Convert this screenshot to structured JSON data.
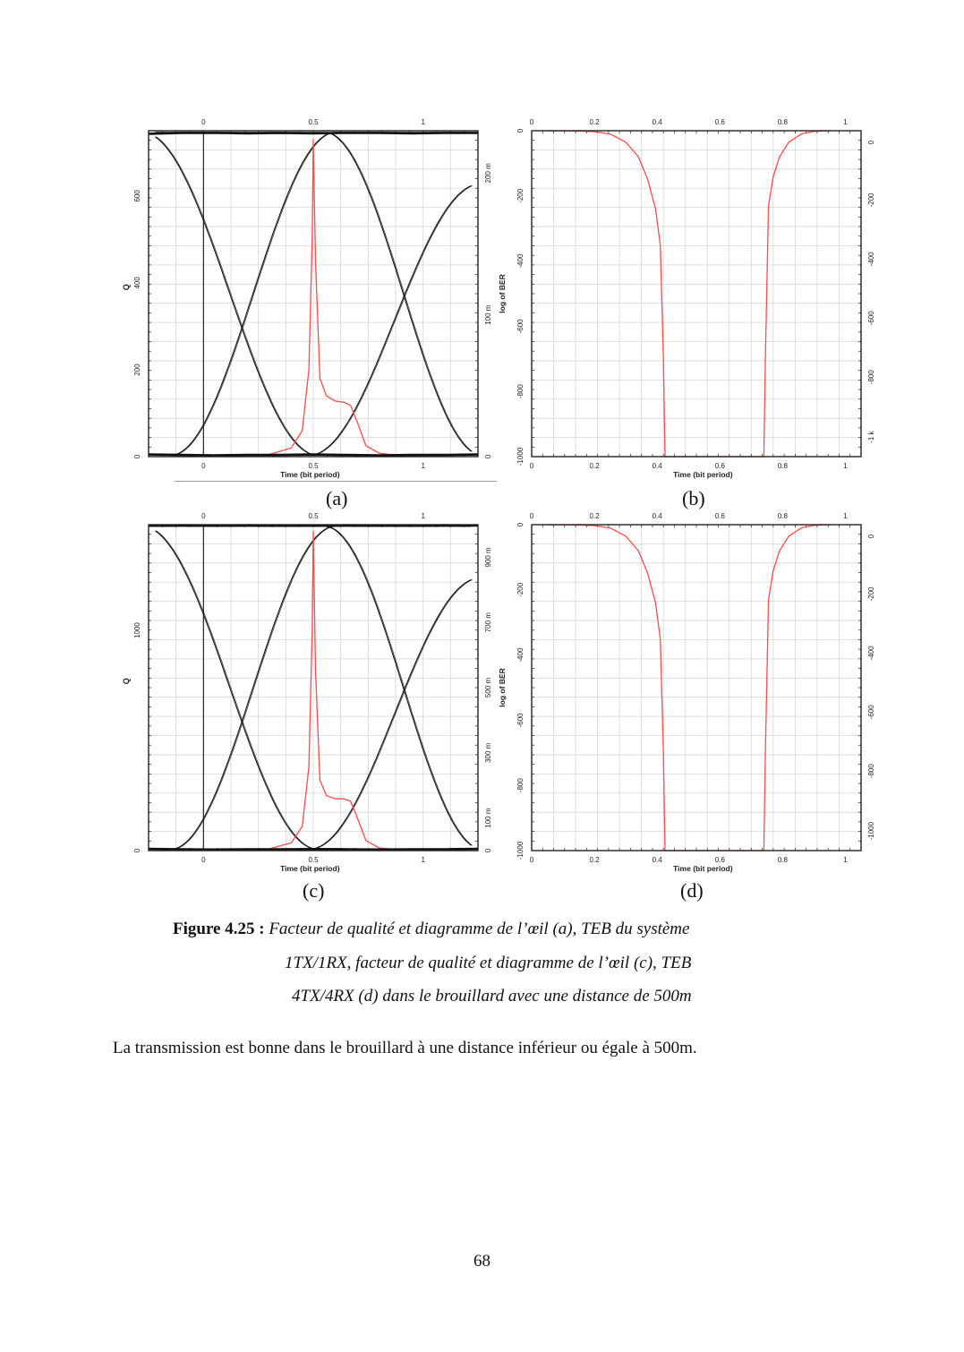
{
  "panels": {
    "a": {
      "label": "(a)",
      "x_axis_label": "Time (bit period)",
      "y_left_label": "Q",
      "bottom_ticks": [
        "0",
        "0.5",
        "1"
      ],
      "top_ticks": [
        "0",
        "0.5",
        "1"
      ],
      "left_ticks": [
        "0",
        "200",
        "400",
        "600"
      ],
      "right_ticks": [
        "0",
        "100 m",
        "200 m"
      ]
    },
    "b": {
      "label": "(b)",
      "x_axis_label": "Time (bit period)",
      "y_left_label": "log of BER",
      "bottom_ticks": [
        "0",
        "0.2",
        "0.4",
        "0.6",
        "0.8",
        "1"
      ],
      "top_ticks": [
        "0",
        "0.2",
        "0.4",
        "0.6",
        "0.8",
        "1"
      ],
      "left_ticks": [
        "0",
        "-200",
        "-400",
        "-600",
        "-800",
        "-1000"
      ],
      "right_ticks": [
        "0",
        "-200",
        "-400",
        "-600",
        "-800",
        "-1 k"
      ]
    },
    "c": {
      "label": "(c)",
      "x_axis_label": "Time (bit period)",
      "y_left_label": "Q",
      "bottom_ticks": [
        "0",
        "0.5",
        "1"
      ],
      "top_ticks": [
        "0",
        "0.5",
        "1"
      ],
      "left_ticks": [
        "0",
        "1000"
      ],
      "right_ticks": [
        "0",
        "100 m",
        "300 m",
        "500 m",
        "700 m",
        "900 m"
      ]
    },
    "d": {
      "label": "(d)",
      "x_axis_label": "Time (bit period)",
      "y_left_label": "log of BER",
      "bottom_ticks": [
        "0",
        "0.2",
        "0.4",
        "0.6",
        "0.8",
        "1"
      ],
      "top_ticks": [
        "0",
        "0.2",
        "0.4",
        "0.6",
        "0.8",
        "1"
      ],
      "left_ticks": [
        "0",
        "-200",
        "-400",
        "-600",
        "-800",
        "-1000"
      ],
      "right_ticks": [
        "0",
        "-200",
        "-400",
        "-600",
        "-800",
        "-1000"
      ]
    }
  },
  "caption": {
    "prefix": "Figure 4.25 :",
    "line1": "Facteur de qualité  et diagramme de l’œil (a), TEB du système",
    "line2": "1TX/1RX, facteur de qualité  et diagramme de l’œil (c), TEB",
    "line3": "4TX/4RX (d) dans le brouillard avec une distance de 500m"
  },
  "body_text": "La transmission est bonne dans le brouillard à une distance inférieur ou égale à 500m.",
  "page_number": "68",
  "chart_data": [
    {
      "id": "a",
      "type": "line",
      "xlabel": "Time (bit period)",
      "ylabel": "Q",
      "xlim": [
        -0.25,
        1.25
      ],
      "ylim": [
        0,
        750
      ],
      "secondary_ylim": [
        0,
        0.23
      ],
      "grid": true,
      "series": [
        {
          "color": "#ff4a4a",
          "axis": "left",
          "x": [
            0.05,
            0.3,
            0.4,
            0.45,
            0.48,
            0.495,
            0.5,
            0.51,
            0.53,
            0.56,
            0.6,
            0.64,
            0.67,
            0.7,
            0.74,
            0.8,
            0.9,
            1.0
          ],
          "y": [
            0,
            5,
            20,
            60,
            200,
            500,
            730,
            450,
            180,
            140,
            128,
            125,
            118,
            80,
            25,
            8,
            2,
            0
          ]
        },
        {
          "color": "#111111",
          "axis": "left",
          "x": [
            -0.25,
            -0.1,
            0.05,
            0.2,
            0.35,
            0.5,
            0.65,
            0.8,
            0.95,
            1.1,
            1.25
          ],
          "y": [
            743,
            745,
            745,
            744,
            745,
            744,
            745,
            745,
            744,
            745,
            745
          ]
        },
        {
          "color": "#111111",
          "axis": "left",
          "x": [
            -0.25,
            -0.1,
            0.05,
            0.2,
            0.35,
            0.5,
            0.65,
            0.8,
            0.95,
            1.1,
            1.25
          ],
          "y": [
            5,
            4,
            3,
            4,
            4,
            5,
            4,
            3,
            4,
            4,
            5
          ]
        }
      ]
    },
    {
      "id": "b",
      "type": "line",
      "xlabel": "Time (bit period)",
      "ylabel": "log of BER",
      "xlim": [
        0,
        1.05
      ],
      "ylim": [
        -1000,
        0
      ],
      "grid": true,
      "series": [
        {
          "color": "#ff4a4a",
          "x": [
            0.05,
            0.15,
            0.2,
            0.25,
            0.3,
            0.34,
            0.37,
            0.395,
            0.41,
            0.42,
            0.425,
            0.74,
            0.745,
            0.755,
            0.77,
            0.79,
            0.82,
            0.86,
            0.9,
            0.95
          ],
          "y": [
            0,
            -1,
            -3,
            -10,
            -35,
            -80,
            -150,
            -240,
            -350,
            -700,
            -1000,
            -1000,
            -700,
            -230,
            -140,
            -80,
            -35,
            -10,
            -2,
            0
          ]
        }
      ]
    },
    {
      "id": "c",
      "type": "line",
      "xlabel": "Time (bit period)",
      "ylabel": "Q",
      "xlim": [
        -0.25,
        1.25
      ],
      "ylim": [
        0,
        1480
      ],
      "secondary_ylim": [
        0,
        1.0
      ],
      "grid": true,
      "series": [
        {
          "color": "#ff4a4a",
          "axis": "left",
          "x": [
            0.05,
            0.3,
            0.4,
            0.45,
            0.48,
            0.495,
            0.5,
            0.51,
            0.53,
            0.56,
            0.6,
            0.64,
            0.67,
            0.7,
            0.74,
            0.8,
            0.9,
            1.0
          ],
          "y": [
            0,
            8,
            35,
            110,
            380,
            1000,
            1450,
            820,
            320,
            250,
            235,
            235,
            225,
            150,
            45,
            12,
            3,
            0
          ]
        },
        {
          "color": "#111111",
          "axis": "left",
          "x": [
            -0.25,
            -0.1,
            0.05,
            0.2,
            0.35,
            0.5,
            0.65,
            0.8,
            0.95,
            1.1,
            1.25
          ],
          "y": [
            1475,
            1477,
            1476,
            1477,
            1475,
            1476,
            1477,
            1476,
            1475,
            1477,
            1476
          ]
        },
        {
          "color": "#111111",
          "axis": "left",
          "x": [
            -0.25,
            -0.1,
            0.05,
            0.2,
            0.35,
            0.5,
            0.65,
            0.8,
            0.95,
            1.1,
            1.25
          ],
          "y": [
            8,
            6,
            5,
            6,
            6,
            7,
            6,
            5,
            6,
            6,
            8
          ]
        }
      ]
    },
    {
      "id": "d",
      "type": "line",
      "xlabel": "Time (bit period)",
      "ylabel": "log of BER",
      "xlim": [
        0,
        1.05
      ],
      "ylim": [
        -1000,
        0
      ],
      "grid": true,
      "series": [
        {
          "color": "#ff4a4a",
          "x": [
            0.05,
            0.15,
            0.2,
            0.25,
            0.3,
            0.34,
            0.37,
            0.395,
            0.41,
            0.42,
            0.425,
            0.74,
            0.745,
            0.755,
            0.77,
            0.79,
            0.82,
            0.86,
            0.9,
            0.95
          ],
          "y": [
            0,
            -1,
            -3,
            -10,
            -35,
            -80,
            -150,
            -240,
            -350,
            -700,
            -1000,
            -1000,
            -700,
            -230,
            -140,
            -80,
            -35,
            -10,
            -2,
            0
          ]
        }
      ]
    }
  ]
}
